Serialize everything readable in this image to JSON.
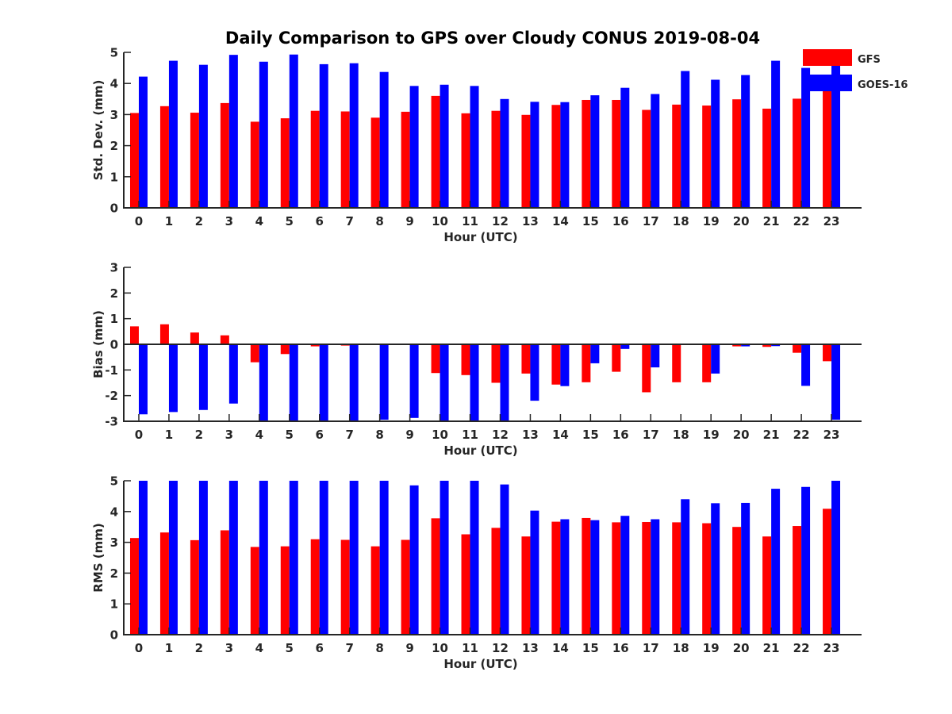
{
  "title": "Daily Comparison to GPS over Cloudy CONUS 2019-08-04",
  "legend": {
    "position": "top-right",
    "entries": [
      "GFS",
      "GOES-16"
    ]
  },
  "colors": {
    "GFS": "#ff0000",
    "GOES-16": "#0000ff",
    "axis": "#262626"
  },
  "chart_data": [
    {
      "type": "bar",
      "xlabel": "Hour (UTC)",
      "ylabel": "Std. Dev. (mm)",
      "ylim": [
        0,
        5
      ],
      "yticks": [
        0,
        1,
        2,
        3,
        4,
        5
      ],
      "grid": false,
      "categories": [
        "0",
        "1",
        "2",
        "3",
        "4",
        "5",
        "6",
        "7",
        "8",
        "9",
        "10",
        "11",
        "12",
        "13",
        "14",
        "15",
        "16",
        "17",
        "18",
        "19",
        "20",
        "21",
        "22",
        "23"
      ],
      "series": [
        {
          "name": "GFS",
          "values": [
            3.05,
            3.27,
            3.06,
            3.37,
            2.77,
            2.88,
            3.12,
            3.1,
            2.9,
            3.09,
            3.6,
            3.04,
            3.12,
            2.99,
            3.31,
            3.47,
            3.47,
            3.15,
            3.32,
            3.29,
            3.49,
            3.19,
            3.51,
            3.75
          ]
        },
        {
          "name": "GOES-16",
          "values": [
            4.22,
            4.73,
            4.6,
            4.92,
            4.7,
            4.93,
            4.62,
            4.65,
            4.37,
            3.92,
            3.96,
            3.92,
            3.5,
            3.41,
            3.4,
            3.62,
            3.86,
            3.66,
            4.4,
            4.12,
            4.27,
            4.73,
            4.5,
            4.65
          ]
        }
      ]
    },
    {
      "type": "bar",
      "xlabel": "Hour (UTC)",
      "ylabel": "Bias (mm)",
      "ylim": [
        -3,
        3
      ],
      "yticks": [
        -3,
        -2,
        -1,
        0,
        1,
        2,
        3
      ],
      "grid": false,
      "categories": [
        "0",
        "1",
        "2",
        "3",
        "4",
        "5",
        "6",
        "7",
        "8",
        "9",
        "10",
        "11",
        "12",
        "13",
        "14",
        "15",
        "16",
        "17",
        "18",
        "19",
        "20",
        "21",
        "22",
        "23"
      ],
      "series": [
        {
          "name": "GFS",
          "values": [
            0.7,
            0.78,
            0.46,
            0.35,
            -0.7,
            -0.38,
            -0.08,
            -0.05,
            -0.02,
            -0.02,
            -1.12,
            -1.2,
            -1.5,
            -1.14,
            -1.57,
            -1.48,
            -1.07,
            -1.87,
            -1.48,
            -1.48,
            -0.08,
            -0.1,
            -0.33,
            -0.66
          ]
        },
        {
          "name": "GOES-16",
          "values": [
            -2.73,
            -2.64,
            -2.56,
            -2.31,
            -3.0,
            -3.0,
            -3.0,
            -3.0,
            -2.94,
            -2.87,
            -3.0,
            -3.0,
            -3.0,
            -2.2,
            -1.63,
            -0.74,
            -0.18,
            -0.9,
            -0.02,
            -1.14,
            -0.08,
            -0.07,
            -1.62,
            -2.94
          ]
        }
      ]
    },
    {
      "type": "bar",
      "xlabel": "Hour (UTC)",
      "ylabel": "RMS (mm)",
      "ylim": [
        0,
        5
      ],
      "yticks": [
        0,
        1,
        2,
        3,
        4,
        5
      ],
      "grid": false,
      "categories": [
        "0",
        "1",
        "2",
        "3",
        "4",
        "5",
        "6",
        "7",
        "8",
        "9",
        "10",
        "11",
        "12",
        "13",
        "14",
        "15",
        "16",
        "17",
        "18",
        "19",
        "20",
        "21",
        "22",
        "23"
      ],
      "series": [
        {
          "name": "GFS",
          "values": [
            3.14,
            3.32,
            3.07,
            3.39,
            2.85,
            2.87,
            3.1,
            3.08,
            2.87,
            3.08,
            3.78,
            3.26,
            3.47,
            3.19,
            3.67,
            3.79,
            3.65,
            3.66,
            3.65,
            3.62,
            3.5,
            3.19,
            3.53,
            4.09
          ]
        },
        {
          "name": "GOES-16",
          "values": [
            5.0,
            5.0,
            5.0,
            5.0,
            5.0,
            5.0,
            5.0,
            5.0,
            5.0,
            4.85,
            5.0,
            5.0,
            4.88,
            4.03,
            3.75,
            3.72,
            3.86,
            3.75,
            4.4,
            4.27,
            4.28,
            4.74,
            4.8,
            5.0
          ]
        }
      ]
    }
  ]
}
